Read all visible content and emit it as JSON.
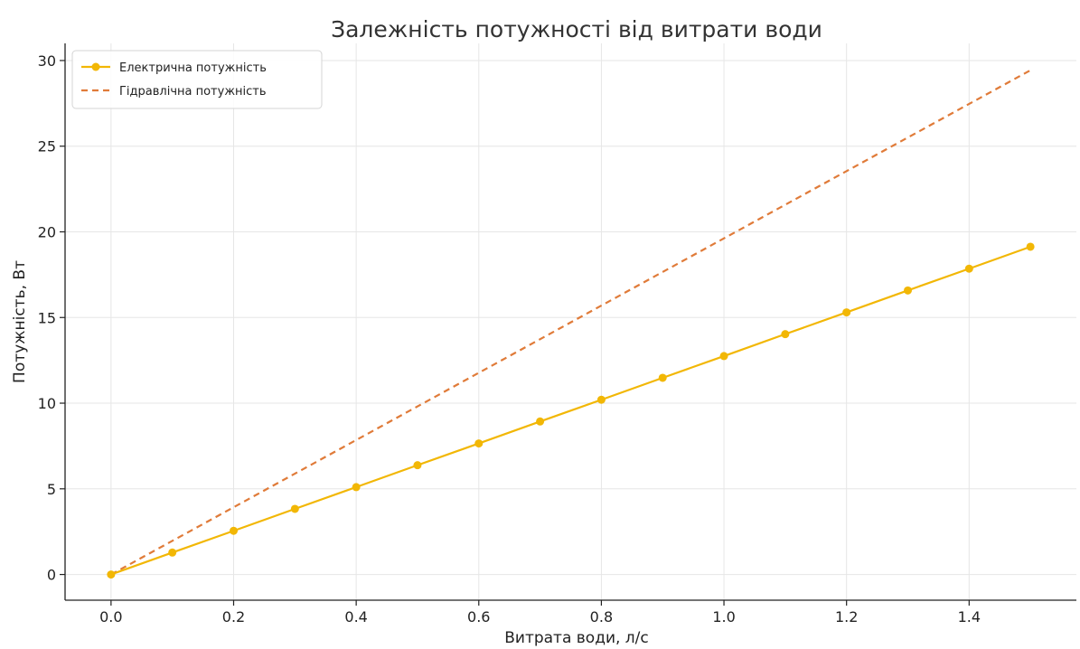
{
  "chart_data": {
    "type": "line",
    "title": "Залежність потужності від витрати води",
    "xlabel": "Витрата води, л/с",
    "ylabel": "Потужність, Вт",
    "xlim": [
      -0.075,
      1.575
    ],
    "ylim": [
      -1.5,
      31.0
    ],
    "xticks": [
      0.0,
      0.2,
      0.4,
      0.6,
      0.8,
      1.0,
      1.2,
      1.4
    ],
    "xtick_labels": [
      "0.0",
      "0.2",
      "0.4",
      "0.6",
      "0.8",
      "1.0",
      "1.2",
      "1.4"
    ],
    "yticks": [
      0,
      5,
      10,
      15,
      20,
      25,
      30
    ],
    "ytick_labels": [
      "0",
      "5",
      "10",
      "15",
      "20",
      "25",
      "30"
    ],
    "grid": true,
    "legend_position": "top-left",
    "series": [
      {
        "name": "Електрична потужність",
        "color": "#f2b705",
        "style": "solid",
        "marker": "circle",
        "x": [
          0.0,
          0.1,
          0.2,
          0.3,
          0.4,
          0.5,
          0.6,
          0.7,
          0.8,
          0.9,
          1.0,
          1.1,
          1.2,
          1.3,
          1.4,
          1.5
        ],
        "y": [
          0.0,
          1.28,
          2.55,
          3.83,
          5.1,
          6.38,
          7.65,
          8.93,
          10.2,
          11.48,
          12.75,
          14.03,
          15.3,
          16.58,
          17.85,
          19.13
        ]
      },
      {
        "name": "Гідравлічна потужність",
        "color": "#e07b39",
        "style": "dashed",
        "marker": "none",
        "x": [
          0.0,
          1.5
        ],
        "y": [
          0.0,
          29.43
        ]
      }
    ]
  }
}
